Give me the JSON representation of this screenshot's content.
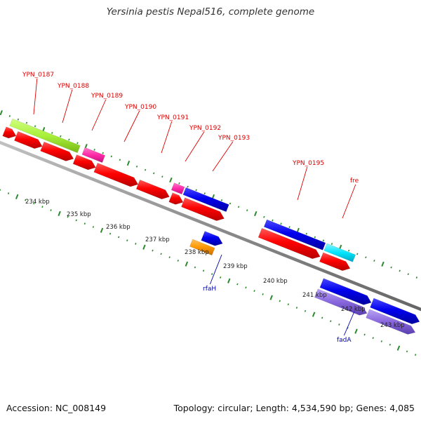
{
  "title": "Yersinia pestis Nepal516, complete genome",
  "footer": {
    "accession": "Accession: NC_008149",
    "summary": "Topology: circular; Length: 4,534,590 bp; Genes: 4,085"
  },
  "colors": {
    "background": "#ffffff",
    "backbone": "#8a8a8a",
    "tick": "#2d8a2d",
    "cds": "#ff0000",
    "gene_blue": "#0000ee",
    "gene_magenta": "#ff2aa8",
    "gene_green": "#a8f03a",
    "gene_orange": "#ff9900",
    "gene_cyan": "#00e5ff",
    "gene_purple": "#8866dd",
    "label_red": "#dd0000",
    "label_blue": "#0000aa"
  },
  "kbp_labels": [
    "234 kbp",
    "235 kbp",
    "236 kbp",
    "237 kbp",
    "238 kbp",
    "239 kbp",
    "240 kbp",
    "241 kbp",
    "242 kbp",
    "243 kbp"
  ],
  "gene_labels_top": [
    "YPN_0187",
    "YPN_0188",
    "YPN_0189",
    "YPN_0190",
    "YPN_0191",
    "YPN_0192",
    "YPN_0193",
    "YPN_0195",
    "fre"
  ],
  "gene_labels_bottom": [
    "rfaH",
    "fadA"
  ]
}
